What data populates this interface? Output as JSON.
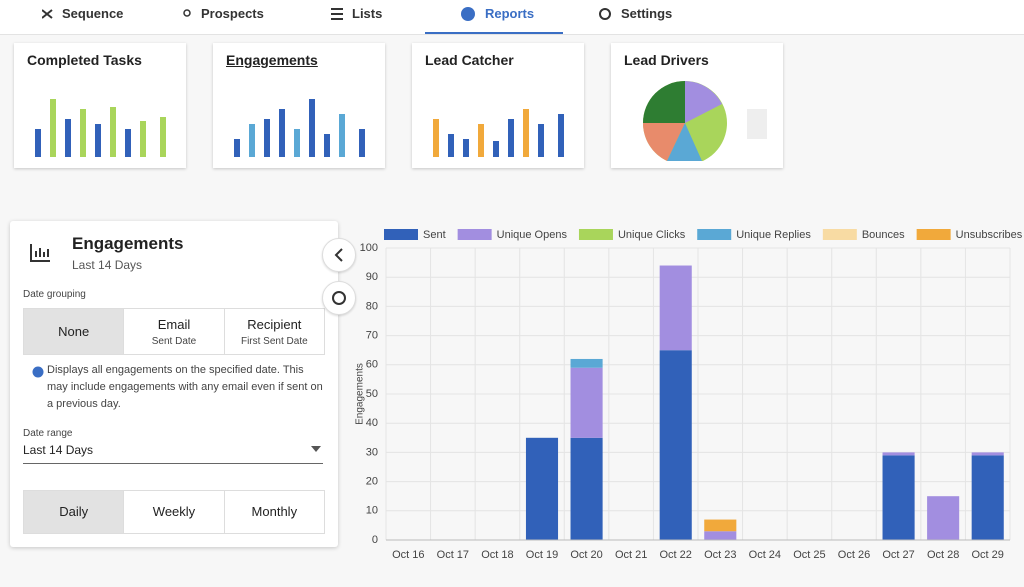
{
  "nav": {
    "tabs": [
      "Sequence",
      "Prospects",
      "Lists",
      "Reports",
      "Settings"
    ]
  },
  "report_cards": [
    "Completed Tasks",
    "Engagements",
    "Lead Catcher",
    "Lead Drivers"
  ],
  "panel": {
    "title": "Engagements",
    "subtitle": "Last 14 Days",
    "date_grouping": {
      "label": "Date grouping",
      "options": [
        {
          "label": "None"
        },
        {
          "label": "Email",
          "sub": "Sent Date"
        },
        {
          "label": "Recipient",
          "sub": "First Sent Date"
        }
      ]
    },
    "help": "Displays all engagements on the specified date. This may include engagements with any email even if sent on a previous day.",
    "date_range": {
      "label": "Date range",
      "value": "Last 14 Days"
    },
    "intervals": [
      "Daily",
      "Weekly",
      "Monthly"
    ]
  },
  "chart_data": {
    "type": "stacked_bar",
    "y_label": "Engagements",
    "categories": [
      "Oct 16",
      "Oct 17",
      "Oct 18",
      "Oct 19",
      "Oct 20",
      "Oct 21",
      "Oct 22",
      "Oct 23",
      "Oct 24",
      "Oct 25",
      "Oct 26",
      "Oct 27",
      "Oct 28",
      "Oct 29"
    ],
    "series": [
      {
        "name": "Sent",
        "color": "#3161b9",
        "values": [
          0,
          0,
          0,
          35,
          35,
          0,
          65,
          0,
          0,
          0,
          0,
          29,
          0,
          29
        ]
      },
      {
        "name": "Unique Opens",
        "color": "#a28ee0",
        "values": [
          0,
          0,
          0,
          0,
          24,
          0,
          29,
          3,
          0,
          0,
          0,
          1,
          15,
          1
        ]
      },
      {
        "name": "Unique Clicks",
        "color": "#a9d55b",
        "values": [
          0,
          0,
          0,
          0,
          0,
          0,
          0,
          0,
          0,
          0,
          0,
          0,
          0,
          0
        ]
      },
      {
        "name": "Unique Replies",
        "color": "#5aa8d5",
        "values": [
          0,
          0,
          0,
          0,
          3,
          0,
          0,
          0,
          0,
          0,
          0,
          0,
          0,
          0
        ]
      },
      {
        "name": "Bounces",
        "color": "#f8dba3",
        "values": [
          0,
          0,
          0,
          0,
          0,
          0,
          0,
          0,
          0,
          0,
          0,
          0,
          0,
          0
        ]
      },
      {
        "name": "Unsubscribes",
        "color": "#f1a93b",
        "values": [
          0,
          0,
          0,
          0,
          0,
          0,
          0,
          4,
          0,
          0,
          0,
          0,
          0,
          0
        ]
      }
    ],
    "ylim": [
      0,
      100
    ],
    "yticks": [
      0,
      10,
      20,
      30,
      40,
      50,
      60,
      70,
      80,
      90,
      100
    ],
    "grid": true,
    "legend": "top"
  }
}
